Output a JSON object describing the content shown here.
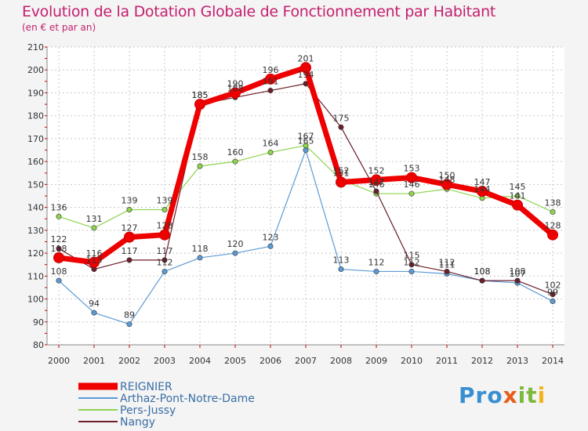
{
  "title": "Evolution de la Dotation Globale de Fonctionnement par Habitant",
  "subtitle": "(en € et par an)",
  "logo": "Proxiti",
  "colors": {
    "reignier": "#ee0000",
    "arthaz": "#5b9bd5",
    "pers": "#8ed44f",
    "nangy": "#6b1f2a",
    "title": "#c41f6e"
  },
  "chart_data": {
    "type": "line",
    "title": "Evolution de la Dotation Globale de Fonctionnement par Habitant",
    "subtitle": "(en € et par an)",
    "xlabel": "",
    "ylabel": "",
    "ylim": [
      80,
      210
    ],
    "yticks": [
      80,
      90,
      100,
      110,
      120,
      130,
      140,
      150,
      160,
      170,
      180,
      190,
      200,
      210
    ],
    "categories": [
      "2000",
      "2001",
      "2002",
      "2003",
      "2004",
      "2005",
      "2006",
      "2007",
      "2008",
      "2009",
      "2010",
      "2011",
      "2012",
      "2013",
      "2014"
    ],
    "grid": true,
    "legend": "bottom-left",
    "series": [
      {
        "name": "REIGNIER",
        "key": "reignier",
        "values": [
          118,
          116,
          127,
          128,
          185,
          190,
          196,
          201,
          151,
          152,
          153,
          150,
          147,
          141,
          128
        ]
      },
      {
        "name": "Arthaz-Pont-Notre-Dame",
        "key": "arthaz",
        "values": [
          108,
          94,
          89,
          112,
          118,
          120,
          123,
          165,
          113,
          112,
          112,
          111,
          108,
          107,
          99
        ]
      },
      {
        "name": "Pers-Jussy",
        "key": "pers",
        "values": [
          136,
          131,
          139,
          139,
          158,
          160,
          164,
          167,
          152,
          146,
          146,
          148,
          144,
          145,
          138
        ]
      },
      {
        "name": "Nangy",
        "key": "nangy",
        "values": [
          122,
          113,
          117,
          117,
          185,
          188,
          191,
          194,
          175,
          147,
          115,
          112,
          108,
          108,
          102
        ]
      }
    ]
  }
}
